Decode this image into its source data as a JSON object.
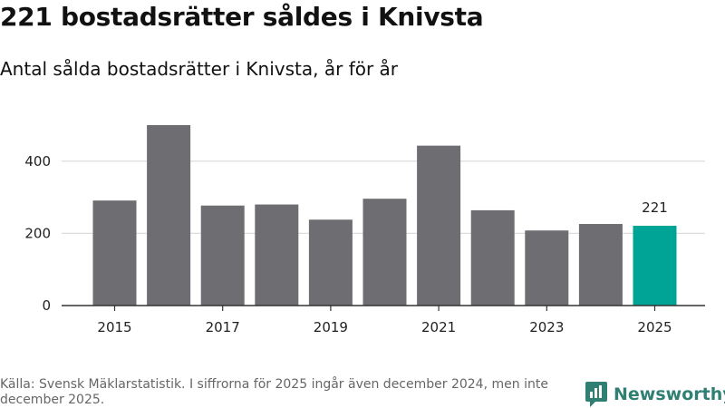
{
  "title": "221 bostadsrätter såldes i Knivsta",
  "subtitle": "Antal sålda bostadsrätter i Knivsta, år för år",
  "source": "Källa: Svensk Mäklarstatistik. I siffrorna för 2025 ingår även december 2024, men inte december 2025.",
  "logo": {
    "text": "Newsworthy",
    "icon": "newsworthy-logo-icon",
    "color": "#2f7f73"
  },
  "colors": {
    "bar": "#6e6e72",
    "highlight": "#00a497",
    "grid": "#dddddd",
    "axis": "#333333"
  },
  "chart_data": {
    "type": "bar",
    "categories": [
      2015,
      2016,
      2017,
      2018,
      2019,
      2020,
      2021,
      2022,
      2023,
      2024,
      2025
    ],
    "values": [
      291,
      500,
      277,
      280,
      238,
      296,
      443,
      264,
      208,
      226,
      221
    ],
    "x_tick_labels": [
      "2015",
      "2017",
      "2019",
      "2021",
      "2023",
      "2025"
    ],
    "y_ticks": [
      0,
      200,
      400
    ],
    "ylim": [
      0,
      520
    ],
    "grid": true,
    "highlight_category": 2025,
    "data_labels": [
      {
        "category": 2025,
        "text": "221"
      }
    ],
    "xlabel": "",
    "ylabel": ""
  }
}
